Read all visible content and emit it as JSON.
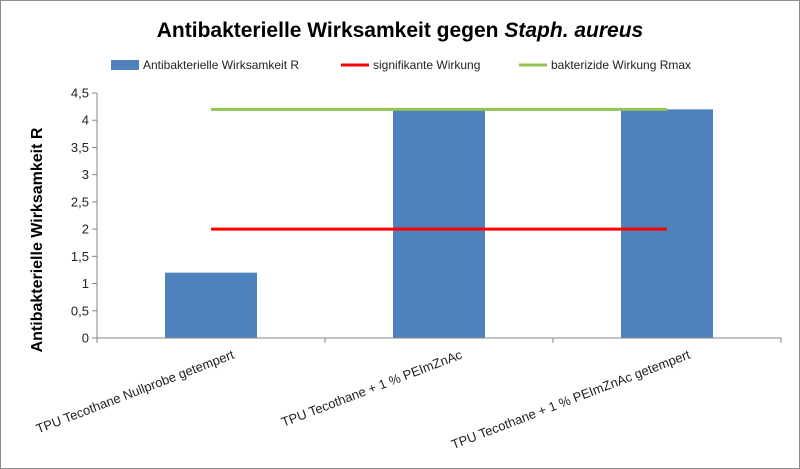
{
  "chart_data": {
    "type": "bar",
    "title": "Antibakterielle Wirksamkeit gegen ",
    "title_italic": "Staph. aureus",
    "xlabel": "",
    "ylabel": "Antibakterielle Wirksamkeit R",
    "ylim": [
      0,
      4.5
    ],
    "yticks": [
      "0",
      "0,5",
      "1",
      "1,5",
      "2",
      "2,5",
      "3",
      "3,5",
      "4",
      "4,5"
    ],
    "ytick_values": [
      0,
      0.5,
      1,
      1.5,
      2,
      2.5,
      3,
      3.5,
      4,
      4.5
    ],
    "grid": false,
    "legend_position": "top",
    "categories": [
      "TPU Tecothane Nullprobe getempert",
      "TPU Tecothane + 1 % PEImZnAc",
      "TPU Tecothane + 1 % PEImZnAc getempert"
    ],
    "series": [
      {
        "name": "Antibakterielle Wirksamkeit R",
        "kind": "bar",
        "color": "#4f81bd",
        "values": [
          1.2,
          4.2,
          4.2
        ]
      },
      {
        "name": "signifikante Wirkung",
        "kind": "line",
        "color": "#ff0000",
        "values": [
          2,
          2,
          2
        ]
      },
      {
        "name": "bakterizide Wirkung Rmax",
        "kind": "line",
        "color": "#92c353",
        "values": [
          4.2,
          4.2,
          4.2
        ]
      }
    ],
    "axis_color": "#868686"
  }
}
